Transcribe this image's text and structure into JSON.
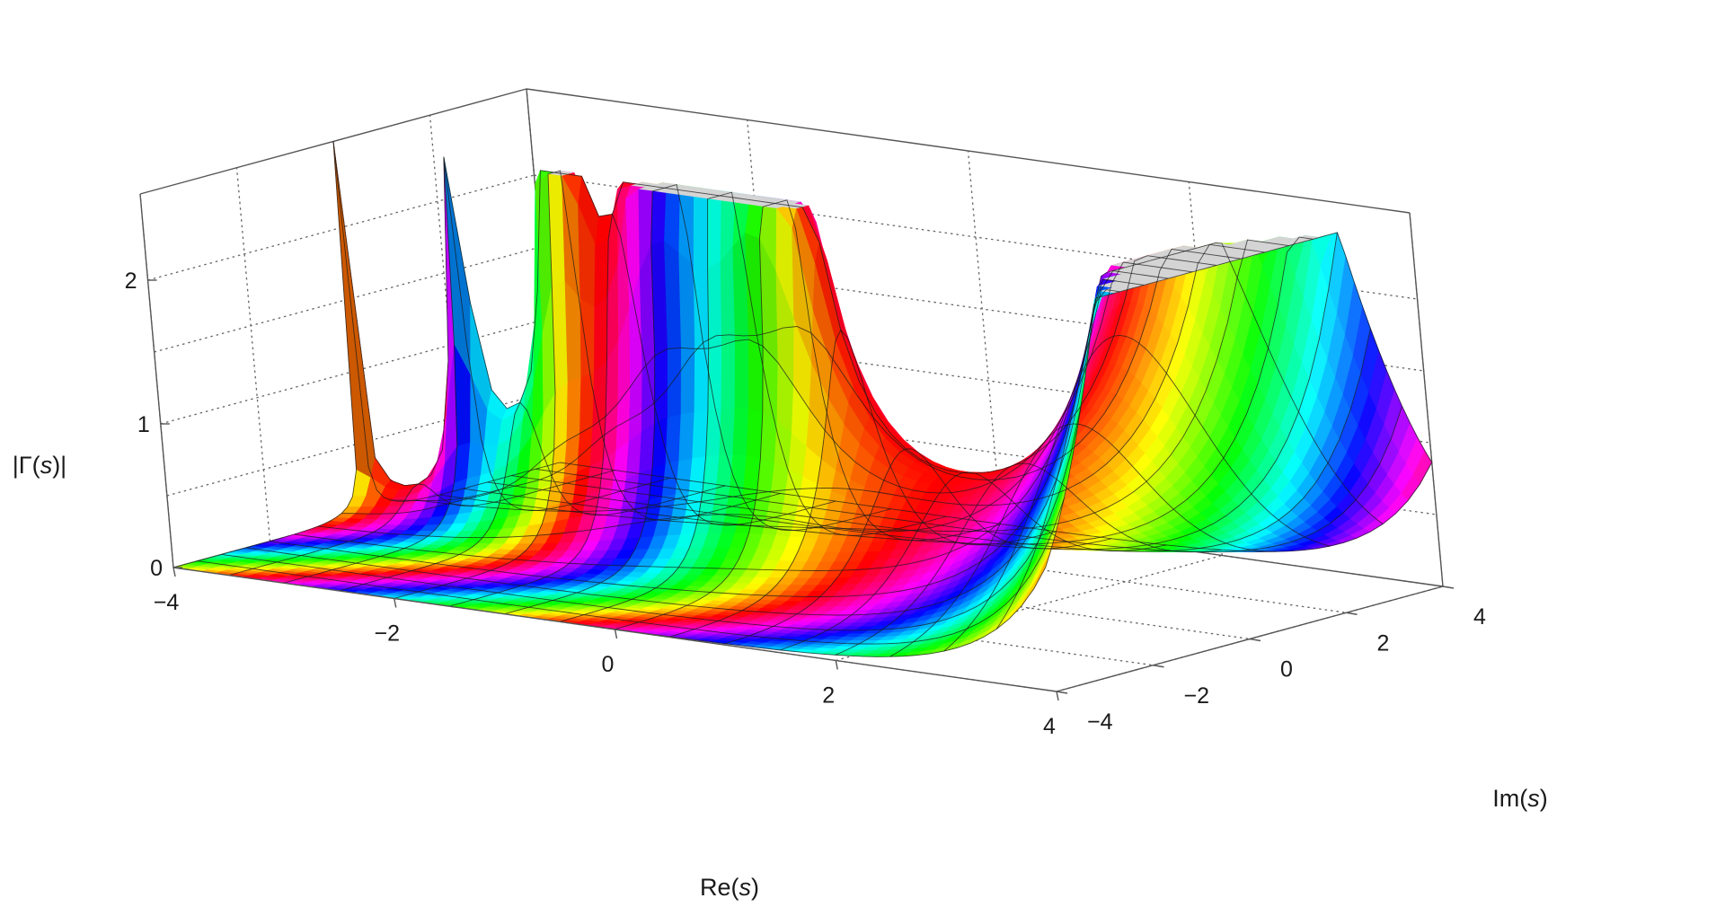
{
  "chart_data": {
    "type": "surface",
    "function": "|Γ(s)|",
    "colouring": "hue by arg Γ(s)",
    "title": "",
    "xlabel": "Re(s)",
    "ylabel": "Im(s)",
    "zlabel": "|Γ(s)|",
    "xlabel_text": {
      "pre": "Re(",
      "var": "s",
      "post": ")"
    },
    "ylabel_text": {
      "pre": "Im(",
      "var": "s",
      "post": ")"
    },
    "zlabel_text": {
      "pre": "|Γ(",
      "var": "s",
      "post": ")|"
    },
    "xlim": [
      -4,
      4
    ],
    "ylim": [
      -4,
      4
    ],
    "zlim": [
      0,
      2.6
    ],
    "x_ticks": [
      "−4",
      "−2",
      "0",
      "2",
      "4"
    ],
    "y_ticks": [
      "−4",
      "−2",
      "0",
      "2",
      "4"
    ],
    "z_ticks": [
      "0",
      "1",
      "2"
    ],
    "clipped_top_value": 2.6,
    "grid": true,
    "box": true,
    "mesh_lines": true
  }
}
